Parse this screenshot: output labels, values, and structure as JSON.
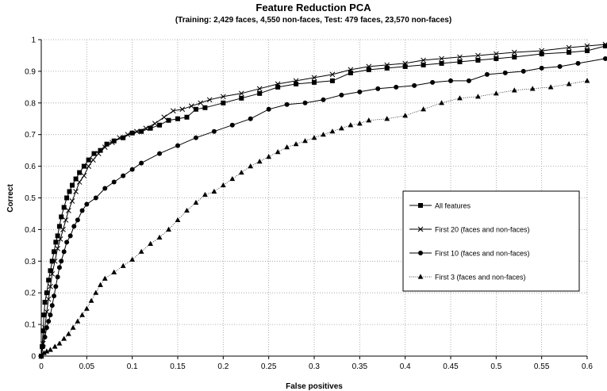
{
  "chart_data": {
    "type": "line",
    "title": "Feature Reduction PCA",
    "subtitle": "(Training: 2,429 faces, 4,550 non-faces, Test: 479 faces, 23,570 non-faces)",
    "xlabel": "False positives",
    "ylabel": "Correct",
    "xlim": [
      0,
      0.6
    ],
    "ylim": [
      0,
      1
    ],
    "xticks": [
      "0",
      "0.05",
      "0.1",
      "0.15",
      "0.2",
      "0.25",
      "0.3",
      "0.35",
      "0.4",
      "0.45",
      "0.5",
      "0.55",
      "0.6"
    ],
    "yticks": [
      "0",
      "0.1",
      "0.2",
      "0.3",
      "0.4",
      "0.5",
      "0.6",
      "0.7",
      "0.8",
      "0.9",
      "1"
    ],
    "grid": "dotted",
    "legend_position": "right",
    "series": [
      {
        "name": "All features",
        "marker": "square",
        "line": "solid",
        "points": [
          [
            0,
            0
          ],
          [
            0.001,
            0.03
          ],
          [
            0.002,
            0.08
          ],
          [
            0.003,
            0.13
          ],
          [
            0.004,
            0.17
          ],
          [
            0.006,
            0.2
          ],
          [
            0.008,
            0.24
          ],
          [
            0.01,
            0.27
          ],
          [
            0.012,
            0.3
          ],
          [
            0.014,
            0.33
          ],
          [
            0.016,
            0.36
          ],
          [
            0.018,
            0.38
          ],
          [
            0.02,
            0.41
          ],
          [
            0.022,
            0.44
          ],
          [
            0.025,
            0.47
          ],
          [
            0.028,
            0.5
          ],
          [
            0.031,
            0.52
          ],
          [
            0.034,
            0.54
          ],
          [
            0.038,
            0.56
          ],
          [
            0.042,
            0.58
          ],
          [
            0.047,
            0.6
          ],
          [
            0.052,
            0.62
          ],
          [
            0.058,
            0.64
          ],
          [
            0.065,
            0.65
          ],
          [
            0.072,
            0.67
          ],
          [
            0.08,
            0.68
          ],
          [
            0.09,
            0.69
          ],
          [
            0.1,
            0.705
          ],
          [
            0.11,
            0.71
          ],
          [
            0.12,
            0.72
          ],
          [
            0.13,
            0.73
          ],
          [
            0.14,
            0.745
          ],
          [
            0.15,
            0.75
          ],
          [
            0.16,
            0.755
          ],
          [
            0.17,
            0.78
          ],
          [
            0.18,
            0.785
          ],
          [
            0.2,
            0.8
          ],
          [
            0.22,
            0.815
          ],
          [
            0.24,
            0.83
          ],
          [
            0.26,
            0.85
          ],
          [
            0.28,
            0.86
          ],
          [
            0.3,
            0.865
          ],
          [
            0.32,
            0.87
          ],
          [
            0.34,
            0.895
          ],
          [
            0.36,
            0.905
          ],
          [
            0.38,
            0.91
          ],
          [
            0.4,
            0.915
          ],
          [
            0.42,
            0.92
          ],
          [
            0.44,
            0.925
          ],
          [
            0.46,
            0.93
          ],
          [
            0.48,
            0.935
          ],
          [
            0.5,
            0.94
          ],
          [
            0.52,
            0.945
          ],
          [
            0.55,
            0.955
          ],
          [
            0.58,
            0.96
          ],
          [
            0.6,
            0.965
          ],
          [
            0.62,
            0.98
          ]
        ]
      },
      {
        "name": "First 20 (faces and non-faces)",
        "marker": "x",
        "line": "solid",
        "points": [
          [
            0,
            0
          ],
          [
            0.002,
            0.04
          ],
          [
            0.004,
            0.09
          ],
          [
            0.006,
            0.14
          ],
          [
            0.008,
            0.18
          ],
          [
            0.01,
            0.22
          ],
          [
            0.012,
            0.26
          ],
          [
            0.015,
            0.3
          ],
          [
            0.018,
            0.34
          ],
          [
            0.021,
            0.37
          ],
          [
            0.024,
            0.4
          ],
          [
            0.027,
            0.43
          ],
          [
            0.03,
            0.46
          ],
          [
            0.034,
            0.49
          ],
          [
            0.038,
            0.52
          ],
          [
            0.042,
            0.55
          ],
          [
            0.047,
            0.57
          ],
          [
            0.052,
            0.6
          ],
          [
            0.057,
            0.62
          ],
          [
            0.063,
            0.64
          ],
          [
            0.07,
            0.66
          ],
          [
            0.078,
            0.675
          ],
          [
            0.086,
            0.69
          ],
          [
            0.095,
            0.7
          ],
          [
            0.105,
            0.71
          ],
          [
            0.115,
            0.72
          ],
          [
            0.125,
            0.735
          ],
          [
            0.135,
            0.755
          ],
          [
            0.145,
            0.775
          ],
          [
            0.155,
            0.78
          ],
          [
            0.165,
            0.79
          ],
          [
            0.175,
            0.8
          ],
          [
            0.185,
            0.81
          ],
          [
            0.2,
            0.82
          ],
          [
            0.22,
            0.83
          ],
          [
            0.24,
            0.845
          ],
          [
            0.26,
            0.86
          ],
          [
            0.28,
            0.87
          ],
          [
            0.3,
            0.88
          ],
          [
            0.32,
            0.89
          ],
          [
            0.34,
            0.905
          ],
          [
            0.36,
            0.915
          ],
          [
            0.38,
            0.92
          ],
          [
            0.4,
            0.925
          ],
          [
            0.42,
            0.935
          ],
          [
            0.44,
            0.94
          ],
          [
            0.46,
            0.945
          ],
          [
            0.48,
            0.95
          ],
          [
            0.5,
            0.955
          ],
          [
            0.52,
            0.96
          ],
          [
            0.55,
            0.965
          ],
          [
            0.58,
            0.975
          ],
          [
            0.6,
            0.98
          ],
          [
            0.62,
            0.985
          ]
        ]
      },
      {
        "name": "First 10 (faces and non-faces)",
        "marker": "circle",
        "line": "solid",
        "points": [
          [
            0,
            0
          ],
          [
            0.002,
            0.03
          ],
          [
            0.004,
            0.06
          ],
          [
            0.006,
            0.09
          ],
          [
            0.008,
            0.11
          ],
          [
            0.01,
            0.13
          ],
          [
            0.012,
            0.16
          ],
          [
            0.014,
            0.19
          ],
          [
            0.016,
            0.22
          ],
          [
            0.018,
            0.25
          ],
          [
            0.02,
            0.28
          ],
          [
            0.022,
            0.3
          ],
          [
            0.025,
            0.33
          ],
          [
            0.028,
            0.36
          ],
          [
            0.032,
            0.38
          ],
          [
            0.036,
            0.41
          ],
          [
            0.04,
            0.43
          ],
          [
            0.045,
            0.46
          ],
          [
            0.05,
            0.48
          ],
          [
            0.06,
            0.5
          ],
          [
            0.07,
            0.53
          ],
          [
            0.08,
            0.55
          ],
          [
            0.09,
            0.57
          ],
          [
            0.1,
            0.59
          ],
          [
            0.11,
            0.61
          ],
          [
            0.13,
            0.64
          ],
          [
            0.15,
            0.665
          ],
          [
            0.17,
            0.69
          ],
          [
            0.19,
            0.71
          ],
          [
            0.21,
            0.73
          ],
          [
            0.23,
            0.75
          ],
          [
            0.25,
            0.78
          ],
          [
            0.27,
            0.795
          ],
          [
            0.29,
            0.8
          ],
          [
            0.31,
            0.81
          ],
          [
            0.33,
            0.825
          ],
          [
            0.35,
            0.835
          ],
          [
            0.37,
            0.845
          ],
          [
            0.39,
            0.85
          ],
          [
            0.41,
            0.855
          ],
          [
            0.43,
            0.865
          ],
          [
            0.45,
            0.87
          ],
          [
            0.47,
            0.87
          ],
          [
            0.49,
            0.89
          ],
          [
            0.51,
            0.895
          ],
          [
            0.53,
            0.9
          ],
          [
            0.55,
            0.91
          ],
          [
            0.57,
            0.915
          ],
          [
            0.59,
            0.925
          ],
          [
            0.62,
            0.94
          ]
        ]
      },
      {
        "name": "First 3 (faces and non-faces)",
        "marker": "triangle",
        "line": "dotted",
        "points": [
          [
            0,
            0
          ],
          [
            0.003,
            0.01
          ],
          [
            0.006,
            0.015
          ],
          [
            0.01,
            0.02
          ],
          [
            0.015,
            0.03
          ],
          [
            0.02,
            0.04
          ],
          [
            0.025,
            0.055
          ],
          [
            0.03,
            0.07
          ],
          [
            0.035,
            0.09
          ],
          [
            0.04,
            0.11
          ],
          [
            0.045,
            0.13
          ],
          [
            0.05,
            0.15
          ],
          [
            0.055,
            0.175
          ],
          [
            0.06,
            0.2
          ],
          [
            0.065,
            0.225
          ],
          [
            0.07,
            0.245
          ],
          [
            0.08,
            0.265
          ],
          [
            0.09,
            0.285
          ],
          [
            0.1,
            0.305
          ],
          [
            0.11,
            0.33
          ],
          [
            0.12,
            0.355
          ],
          [
            0.13,
            0.375
          ],
          [
            0.14,
            0.4
          ],
          [
            0.15,
            0.43
          ],
          [
            0.16,
            0.46
          ],
          [
            0.17,
            0.485
          ],
          [
            0.18,
            0.51
          ],
          [
            0.19,
            0.52
          ],
          [
            0.2,
            0.54
          ],
          [
            0.21,
            0.56
          ],
          [
            0.22,
            0.58
          ],
          [
            0.23,
            0.6
          ],
          [
            0.24,
            0.615
          ],
          [
            0.25,
            0.63
          ],
          [
            0.26,
            0.645
          ],
          [
            0.27,
            0.66
          ],
          [
            0.28,
            0.67
          ],
          [
            0.29,
            0.68
          ],
          [
            0.3,
            0.69
          ],
          [
            0.31,
            0.7
          ],
          [
            0.32,
            0.71
          ],
          [
            0.33,
            0.72
          ],
          [
            0.34,
            0.73
          ],
          [
            0.35,
            0.735
          ],
          [
            0.36,
            0.745
          ],
          [
            0.38,
            0.75
          ],
          [
            0.4,
            0.76
          ],
          [
            0.42,
            0.78
          ],
          [
            0.44,
            0.8
          ],
          [
            0.46,
            0.815
          ],
          [
            0.48,
            0.82
          ],
          [
            0.5,
            0.83
          ],
          [
            0.52,
            0.84
          ],
          [
            0.54,
            0.845
          ],
          [
            0.56,
            0.85
          ],
          [
            0.58,
            0.86
          ],
          [
            0.6,
            0.87
          ]
        ]
      }
    ]
  }
}
